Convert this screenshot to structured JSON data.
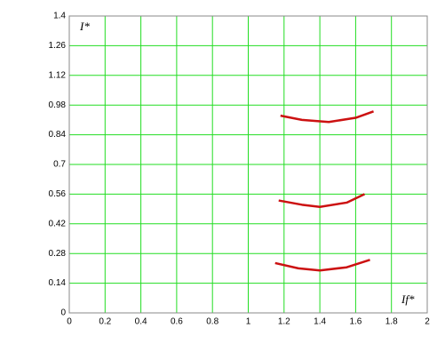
{
  "chart_data": {
    "type": "line",
    "x_label": "If*",
    "y_label": "I*",
    "xlim": [
      0,
      2
    ],
    "xticks": [
      0,
      0.2,
      0.4,
      0.6,
      0.8,
      1,
      1.2,
      1.4,
      1.6,
      1.8,
      2
    ],
    "ylim": [
      0,
      1.4
    ],
    "yticks": [
      0,
      0.14,
      0.28,
      0.42,
      0.56,
      0.7,
      0.84,
      0.98,
      1.12,
      1.26,
      1.4
    ],
    "grid": true,
    "grid_color": "#22dd22",
    "series": [
      {
        "color": "#cc1111",
        "x": [
          1.18,
          1.3,
          1.45,
          1.6,
          1.7
        ],
        "values": [
          0.93,
          0.91,
          0.9,
          0.92,
          0.95
        ]
      },
      {
        "color": "#cc1111",
        "x": [
          1.17,
          1.3,
          1.4,
          1.55,
          1.65
        ],
        "values": [
          0.53,
          0.51,
          0.5,
          0.52,
          0.56
        ]
      },
      {
        "color": "#cc1111",
        "x": [
          1.15,
          1.28,
          1.4,
          1.55,
          1.68
        ],
        "values": [
          0.235,
          0.21,
          0.2,
          0.215,
          0.25
        ]
      }
    ]
  }
}
